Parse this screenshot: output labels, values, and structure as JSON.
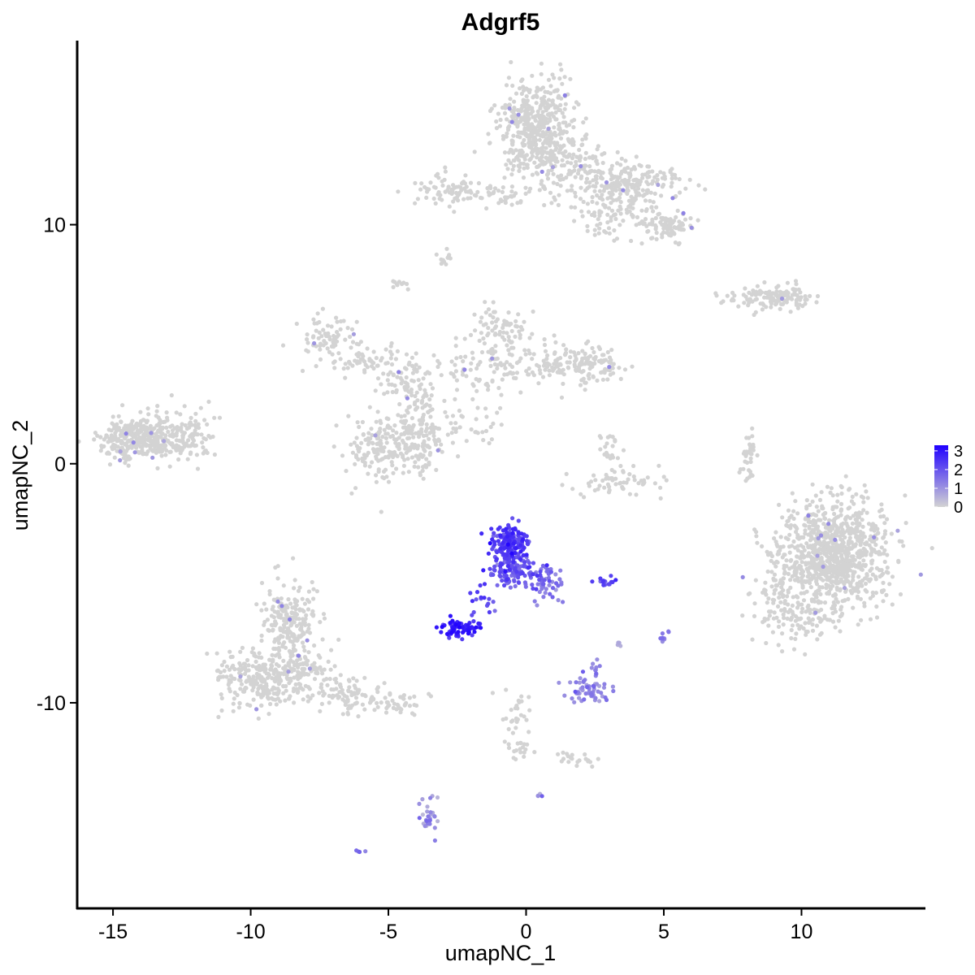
{
  "chart_data": {
    "type": "scatter",
    "title": "Adgrf5",
    "xlabel": "umapNC_1",
    "ylabel": "umapNC_2",
    "xlim": [
      -16.3,
      14.5
    ],
    "ylim": [
      -18.6,
      17.7
    ],
    "x_ticks": [
      -15,
      -10,
      -5,
      0,
      5,
      10
    ],
    "x_tick_labels": [
      "-15",
      "-10",
      "-5",
      "0",
      "5",
      "10"
    ],
    "y_ticks": [
      -10,
      0,
      10
    ],
    "y_tick_labels": [
      "-10",
      "0",
      "10"
    ],
    "grid": false,
    "point_size": 2.6,
    "color_scale": {
      "low": "#d3d3d3",
      "high": "#1f00ff",
      "min": 0,
      "max": 3.3,
      "breaks": [
        0,
        1,
        2,
        3
      ],
      "break_labels": [
        "0",
        "1",
        "2",
        "3"
      ],
      "legend_position": "right"
    },
    "clusters": [
      {
        "cx": -14.0,
        "cy": 1.0,
        "sx": 0.75,
        "sy": 0.45,
        "n": 320,
        "expr": 0
      },
      {
        "cx": -12.4,
        "cy": 1.2,
        "sx": 0.7,
        "sy": 0.55,
        "n": 120,
        "expr": 0
      },
      {
        "cx": 0.3,
        "cy": 14.2,
        "sx": 0.7,
        "sy": 0.9,
        "n": 420,
        "expr": 0
      },
      {
        "cx": 1.5,
        "cy": 12.5,
        "sx": 1.0,
        "sy": 0.7,
        "n": 160,
        "expr": 0
      },
      {
        "cx": 3.8,
        "cy": 11.8,
        "sx": 1.0,
        "sy": 0.4,
        "n": 160,
        "expr": 0
      },
      {
        "cx": 5.1,
        "cy": 9.9,
        "sx": 0.5,
        "sy": 0.3,
        "n": 90,
        "expr": 0
      },
      {
        "cx": 3.2,
        "cy": 10.6,
        "sx": 0.9,
        "sy": 0.6,
        "n": 120,
        "expr": 0
      },
      {
        "cx": -2.8,
        "cy": 11.4,
        "sx": 0.8,
        "sy": 0.35,
        "n": 80,
        "expr": 0
      },
      {
        "cx": -0.8,
        "cy": 11.2,
        "sx": 0.5,
        "sy": 0.2,
        "n": 30,
        "expr": 0
      },
      {
        "cx": -2.9,
        "cy": 8.6,
        "sx": 0.15,
        "sy": 0.15,
        "n": 12,
        "expr": 0
      },
      {
        "cx": -4.6,
        "cy": 7.5,
        "sx": 0.15,
        "sy": 0.15,
        "n": 10,
        "expr": 0
      },
      {
        "cx": 8.5,
        "cy": 6.9,
        "sx": 0.8,
        "sy": 0.25,
        "n": 60,
        "expr": 0
      },
      {
        "cx": 9.3,
        "cy": 7.0,
        "sx": 0.5,
        "sy": 0.25,
        "n": 70,
        "expr": 0
      },
      {
        "cx": -7.2,
        "cy": 5.4,
        "sx": 0.5,
        "sy": 0.5,
        "n": 70,
        "expr": 0
      },
      {
        "cx": -5.9,
        "cy": 4.4,
        "sx": 0.7,
        "sy": 0.4,
        "n": 60,
        "expr": 0
      },
      {
        "cx": -4.3,
        "cy": 3.5,
        "sx": 0.6,
        "sy": 0.5,
        "n": 60,
        "expr": 0
      },
      {
        "cx": -3.8,
        "cy": 2.0,
        "sx": 0.4,
        "sy": 0.9,
        "n": 60,
        "expr": 0
      },
      {
        "cx": -5.4,
        "cy": 0.7,
        "sx": 0.6,
        "sy": 0.7,
        "n": 130,
        "expr": 0
      },
      {
        "cx": -4.0,
        "cy": 0.8,
        "sx": 0.6,
        "sy": 0.7,
        "n": 130,
        "expr": 0
      },
      {
        "cx": -1.4,
        "cy": 4.0,
        "sx": 0.9,
        "sy": 0.6,
        "n": 90,
        "expr": 0
      },
      {
        "cx": -0.8,
        "cy": 5.6,
        "sx": 0.5,
        "sy": 0.5,
        "n": 70,
        "expr": 0
      },
      {
        "cx": 1.2,
        "cy": 4.2,
        "sx": 0.9,
        "sy": 0.4,
        "n": 90,
        "expr": 0
      },
      {
        "cx": 2.4,
        "cy": 4.0,
        "sx": 0.5,
        "sy": 0.4,
        "n": 80,
        "expr": 0
      },
      {
        "cx": -1.9,
        "cy": 1.5,
        "sx": 0.6,
        "sy": 0.5,
        "n": 30,
        "expr": 0
      },
      {
        "cx": 3.4,
        "cy": -0.8,
        "sx": 0.7,
        "sy": 0.3,
        "n": 60,
        "expr": 0
      },
      {
        "cx": 3.0,
        "cy": 0.6,
        "sx": 0.2,
        "sy": 0.4,
        "n": 20,
        "expr": 0
      },
      {
        "cx": 8.1,
        "cy": 0.2,
        "sx": 0.12,
        "sy": 0.6,
        "n": 35,
        "expr": 0
      },
      {
        "cx": 11.2,
        "cy": -3.8,
        "sx": 1.0,
        "sy": 1.1,
        "n": 900,
        "expr": 0
      },
      {
        "cx": 9.2,
        "cy": -5.2,
        "sx": 0.5,
        "sy": 0.8,
        "n": 80,
        "expr": 0
      },
      {
        "cx": 10.2,
        "cy": -6.5,
        "sx": 0.8,
        "sy": 0.5,
        "n": 80,
        "expr": 0
      },
      {
        "cx": -8.6,
        "cy": -6.6,
        "sx": 0.5,
        "sy": 0.8,
        "n": 210,
        "expr": 0
      },
      {
        "cx": -9.8,
        "cy": -9.0,
        "sx": 0.7,
        "sy": 0.6,
        "n": 220,
        "expr": 0
      },
      {
        "cx": -8.2,
        "cy": -8.8,
        "sx": 0.6,
        "sy": 0.6,
        "n": 140,
        "expr": 0
      },
      {
        "cx": -6.6,
        "cy": -9.6,
        "sx": 0.6,
        "sy": 0.4,
        "n": 70,
        "expr": 0
      },
      {
        "cx": -5.0,
        "cy": -10.0,
        "sx": 0.6,
        "sy": 0.3,
        "n": 50,
        "expr": 0
      },
      {
        "cx": -0.6,
        "cy": -3.3,
        "sx": 0.35,
        "sy": 0.35,
        "n": 140,
        "expr": 2.4
      },
      {
        "cx": -0.4,
        "cy": -4.4,
        "sx": 0.45,
        "sy": 0.4,
        "n": 130,
        "expr": 1.9
      },
      {
        "cx": 0.7,
        "cy": -5.0,
        "sx": 0.3,
        "sy": 0.35,
        "n": 45,
        "expr": 1.5
      },
      {
        "cx": -2.4,
        "cy": -6.9,
        "sx": 0.35,
        "sy": 0.2,
        "n": 80,
        "expr": 2.7
      },
      {
        "cx": -1.6,
        "cy": -5.9,
        "sx": 0.2,
        "sy": 0.4,
        "n": 18,
        "expr": 2.4
      },
      {
        "cx": 2.8,
        "cy": -4.9,
        "sx": 0.2,
        "sy": 0.1,
        "n": 14,
        "expr": 2.2
      },
      {
        "cx": 2.3,
        "cy": -9.5,
        "sx": 0.4,
        "sy": 0.25,
        "n": 55,
        "expr": 1.2
      },
      {
        "cx": 2.5,
        "cy": -8.6,
        "sx": 0.1,
        "sy": 0.2,
        "n": 10,
        "expr": 1.2
      },
      {
        "cx": 5.0,
        "cy": -7.3,
        "sx": 0.12,
        "sy": 0.2,
        "n": 10,
        "expr": 1.1
      },
      {
        "cx": 3.4,
        "cy": -7.6,
        "sx": 0.06,
        "sy": 0.1,
        "n": 4,
        "expr": 0.8
      },
      {
        "cx": -3.5,
        "cy": -14.8,
        "sx": 0.2,
        "sy": 0.45,
        "n": 30,
        "expr": 1.0
      },
      {
        "cx": -6.1,
        "cy": -16.2,
        "sx": 0.1,
        "sy": 0.05,
        "n": 4,
        "expr": 1.3
      },
      {
        "cx": 0.6,
        "cy": -13.9,
        "sx": 0.08,
        "sy": 0.08,
        "n": 4,
        "expr": 0.9
      },
      {
        "cx": -0.4,
        "cy": -10.6,
        "sx": 0.25,
        "sy": 0.6,
        "n": 25,
        "expr": 0
      },
      {
        "cx": -0.2,
        "cy": -11.9,
        "sx": 0.3,
        "sy": 0.3,
        "n": 20,
        "expr": 0
      },
      {
        "cx": 1.8,
        "cy": -12.4,
        "sx": 0.5,
        "sy": 0.15,
        "n": 20,
        "expr": 0
      }
    ]
  }
}
